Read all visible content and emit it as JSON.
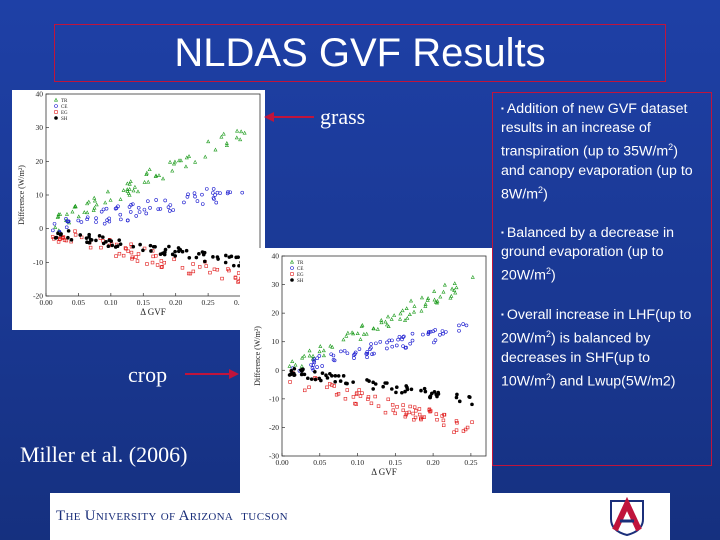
{
  "slide": {
    "title": "NLDAS GVF Results",
    "label_grass": "grass",
    "label_crop": "crop",
    "citation": "Miller et al. (2006)",
    "bullets": [
      {
        "parts": [
          "Addition of new GVF dataset results in an increase of transpiration (up to 35W/m",
          "2",
          ") and canopy evaporation (up to 8W/m",
          "2",
          ")"
        ]
      },
      {
        "parts": [
          "Balanced by a decrease in ground evaporation (up to 20W/m",
          "2",
          ")"
        ]
      },
      {
        "parts": [
          "Overall increase in LHF(up to 20W/m",
          "2",
          ") is balanced by decreases in SHF(up to 10W/m",
          "2",
          ") and Lwup(5W/m2)"
        ]
      }
    ],
    "bullet_marker": "▪"
  },
  "footer": {
    "university": "The University of Arizona",
    "location": "TUCSON"
  },
  "colors": {
    "background": "#1b3a9a",
    "accent_border": "#c0143c",
    "series_TR": "#1a9a1a",
    "series_CE": "#1a1ad0",
    "series_EG": "#e01818",
    "series_SH": "#000000"
  },
  "chart_data": [
    {
      "type": "scatter",
      "name_label": "grass",
      "xlabel": "Δ GVF",
      "ylabel": "Difference (W/m²)",
      "xlim": [
        0.0,
        0.33
      ],
      "ylim": [
        -20,
        40
      ],
      "xticks": [
        "0.00",
        "0.05",
        "0.10",
        "0.15",
        "0.20",
        "0.25",
        "0.30"
      ],
      "yticks": [
        "-20",
        "-10",
        "0",
        "10",
        "20",
        "30",
        "40"
      ],
      "legend": [
        "TR",
        "CE",
        "EG",
        "SH"
      ],
      "legend_position": "top-left",
      "series": [
        {
          "name": "TR",
          "marker": "triangle",
          "slope": 95,
          "intercept": 0,
          "spread": 2.5
        },
        {
          "name": "CE",
          "marker": "circle",
          "slope": 38,
          "intercept": 0,
          "spread": 2.5
        },
        {
          "name": "EG",
          "marker": "square",
          "slope": -45,
          "intercept": -1,
          "spread": 2.5
        },
        {
          "name": "SH",
          "marker": "dot",
          "slope": -30,
          "intercept": -1,
          "spread": 1.5
        }
      ]
    },
    {
      "type": "scatter",
      "name_label": "crop",
      "xlabel": "Δ GVF",
      "ylabel": "Difference (W/m²)",
      "xlim": [
        0.0,
        0.27
      ],
      "ylim": [
        -30,
        40
      ],
      "xticks": [
        "0.00",
        "0.05",
        "0.10",
        "0.15",
        "0.20",
        "0.25"
      ],
      "yticks": [
        "-30",
        "-20",
        "-10",
        "0",
        "10",
        "20",
        "30",
        "40"
      ],
      "legend": [
        "TR",
        "CE",
        "EG",
        "SH"
      ],
      "legend_position": "top-left",
      "series": [
        {
          "name": "TR",
          "marker": "triangle",
          "slope": 125,
          "intercept": 0,
          "spread": 3
        },
        {
          "name": "CE",
          "marker": "circle",
          "slope": 60,
          "intercept": 0,
          "spread": 2.5
        },
        {
          "name": "EG",
          "marker": "square",
          "slope": -75,
          "intercept": -2,
          "spread": 3
        },
        {
          "name": "SH",
          "marker": "dot",
          "slope": -42,
          "intercept": 0,
          "spread": 1.5
        }
      ]
    }
  ]
}
